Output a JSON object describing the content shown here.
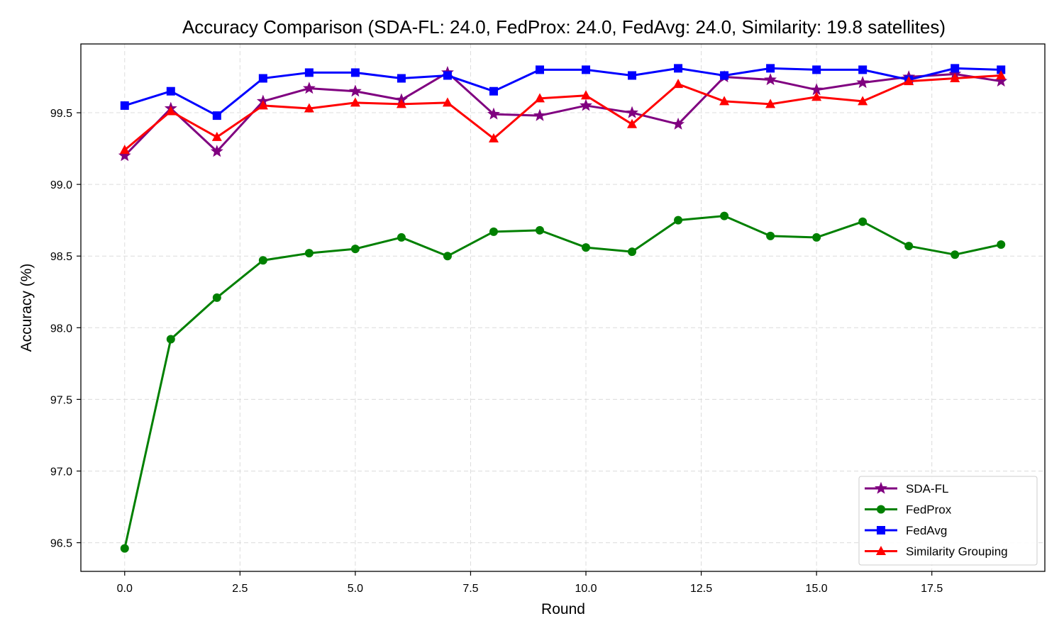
{
  "chart_data": {
    "type": "line",
    "title": "Accuracy Comparison (SDA-FL: 24.0, FedProx: 24.0, FedAvg: 24.0, Similarity: 19.8 satellites)",
    "xlabel": "Round",
    "ylabel": "Accuracy (%)",
    "xlim": [
      -0.95,
      19.95
    ],
    "ylim": [
      96.3,
      99.98
    ],
    "xticks": [
      0.0,
      2.5,
      5.0,
      7.5,
      10.0,
      12.5,
      15.0,
      17.5
    ],
    "xtick_labels": [
      "0.0",
      "2.5",
      "5.0",
      "7.5",
      "10.0",
      "12.5",
      "15.0",
      "17.5"
    ],
    "yticks": [
      96.5,
      97.0,
      97.5,
      98.0,
      98.5,
      99.0,
      99.5
    ],
    "ytick_labels": [
      "96.5",
      "97.0",
      "97.5",
      "98.0",
      "98.5",
      "99.0",
      "99.5"
    ],
    "grid": true,
    "legend_position": "lower-right",
    "x": [
      0,
      1,
      2,
      3,
      4,
      5,
      6,
      7,
      8,
      9,
      10,
      11,
      12,
      13,
      14,
      15,
      16,
      17,
      18,
      19
    ],
    "series": [
      {
        "name": "SDA-FL",
        "color": "#800080",
        "marker": "star",
        "values": [
          99.2,
          99.53,
          99.23,
          99.58,
          99.67,
          99.65,
          99.59,
          99.78,
          99.49,
          99.48,
          99.55,
          99.5,
          99.42,
          99.75,
          99.73,
          99.66,
          99.71,
          99.75,
          99.77,
          99.72
        ]
      },
      {
        "name": "FedProx",
        "color": "#008000",
        "marker": "circle",
        "values": [
          96.46,
          97.92,
          98.21,
          98.47,
          98.52,
          98.55,
          98.63,
          98.5,
          98.67,
          98.68,
          98.56,
          98.53,
          98.75,
          98.78,
          98.64,
          98.63,
          98.74,
          98.57,
          98.51,
          98.58
        ]
      },
      {
        "name": "FedAvg",
        "color": "#0000ff",
        "marker": "square",
        "values": [
          99.55,
          99.65,
          99.48,
          99.74,
          99.78,
          99.78,
          99.74,
          99.76,
          99.65,
          99.8,
          99.8,
          99.76,
          99.81,
          99.76,
          99.81,
          99.8,
          99.8,
          99.73,
          99.81,
          99.8
        ]
      },
      {
        "name": "Similarity Grouping",
        "color": "#ff0000",
        "marker": "triangle",
        "values": [
          99.24,
          99.51,
          99.33,
          99.55,
          99.53,
          99.57,
          99.56,
          99.57,
          99.32,
          99.6,
          99.62,
          99.42,
          99.7,
          99.58,
          99.56,
          99.61,
          99.58,
          99.72,
          99.74,
          99.76
        ]
      }
    ]
  }
}
